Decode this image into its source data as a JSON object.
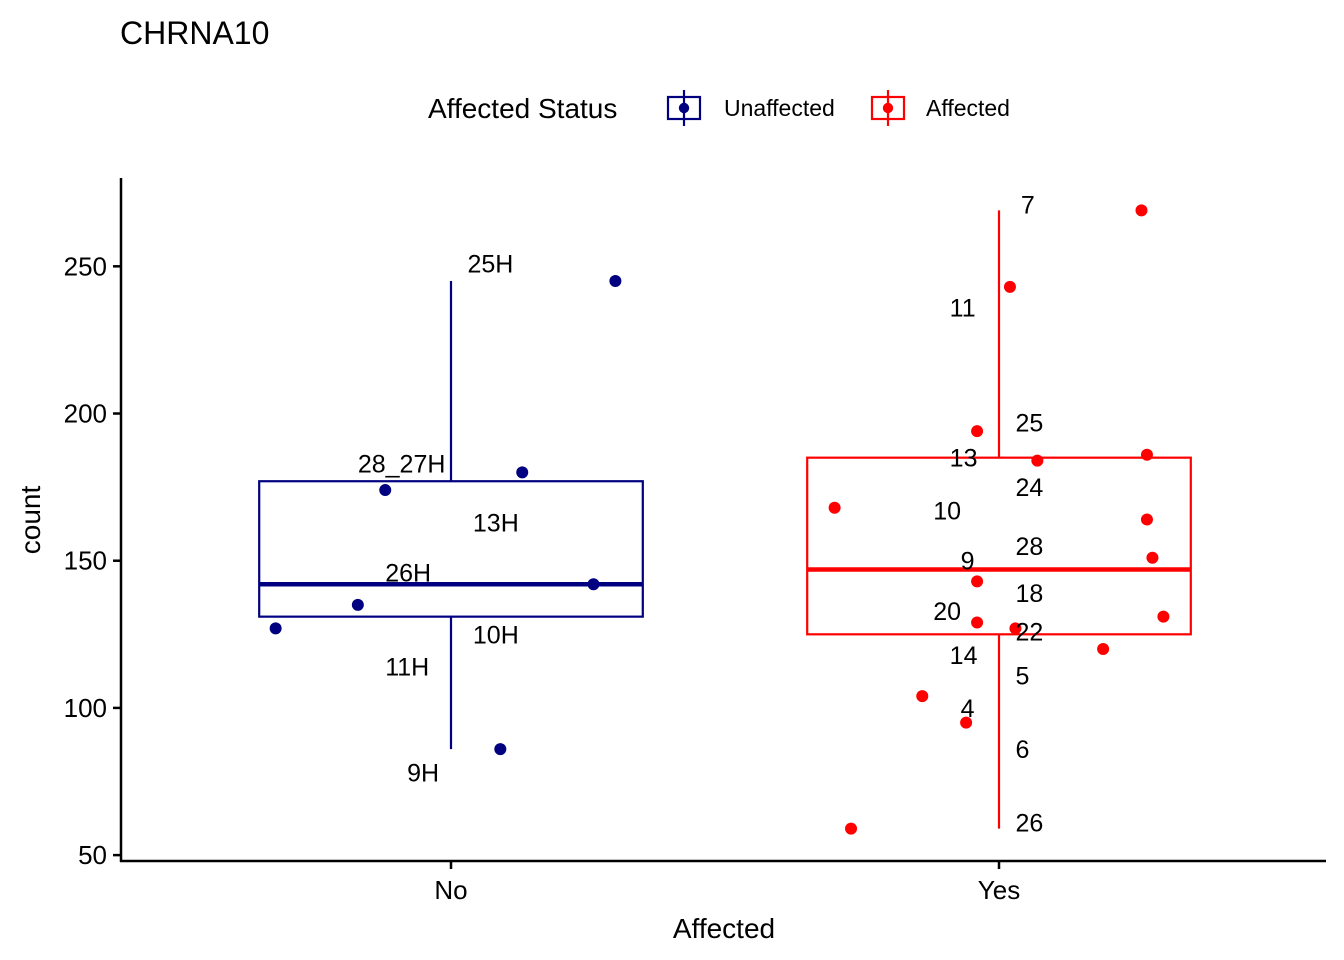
{
  "chart_data": {
    "type": "boxplot",
    "title": "CHRNA10",
    "xlabel": "Affected",
    "ylabel": "count",
    "ylim": [
      48,
      280
    ],
    "yticks": [
      50,
      100,
      150,
      200,
      250
    ],
    "categories": [
      "No",
      "Yes"
    ],
    "legend": {
      "title": "Affected Status",
      "position": "top",
      "entries": [
        {
          "label": "Unaffected",
          "color": "#000080"
        },
        {
          "label": "Affected",
          "color": "#FF0000"
        }
      ]
    },
    "boxes": [
      {
        "category": "No",
        "group": "Unaffected",
        "color": "#000080",
        "whisker_low": 86,
        "q1": 131,
        "median": 142,
        "q3": 177,
        "whisker_high": 245
      },
      {
        "category": "Yes",
        "group": "Affected",
        "color": "#FF0000",
        "whisker_low": 59,
        "q1": 125,
        "median": 147,
        "q3": 185,
        "whisker_high": 269
      }
    ],
    "points": [
      {
        "category": "No",
        "label": "25H",
        "value": 245,
        "jitter": 0.3,
        "lx": 0.03,
        "ly": 251
      },
      {
        "category": "No",
        "label": "28_27H",
        "value": 180,
        "jitter": 0.13,
        "lx": -0.17,
        "ly": 183
      },
      {
        "category": "No",
        "label": "13H",
        "value": 174,
        "jitter": -0.12,
        "lx": 0.04,
        "ly": 163
      },
      {
        "category": "No",
        "label": "26H",
        "value": 142,
        "jitter": 0.26,
        "lx": -0.12,
        "ly": 146
      },
      {
        "category": "No",
        "label": "10H",
        "value": 135,
        "jitter": -0.17,
        "lx": 0.04,
        "ly": 125
      },
      {
        "category": "No",
        "label": "11H",
        "value": 127,
        "jitter": -0.32,
        "lx": -0.12,
        "ly": 114
      },
      {
        "category": "No",
        "label": "9H",
        "value": 86,
        "jitter": 0.09,
        "lx": -0.08,
        "ly": 78
      },
      {
        "category": "Yes",
        "label": "7",
        "value": 269,
        "jitter": 0.26,
        "lx": 0.04,
        "ly": 271
      },
      {
        "category": "Yes",
        "label": "11",
        "value": 243,
        "jitter": 0.02,
        "lx": -0.09,
        "ly": 236
      },
      {
        "category": "Yes",
        "label": "25",
        "value": 194,
        "jitter": -0.04,
        "lx": 0.03,
        "ly": 197
      },
      {
        "category": "Yes",
        "label": "13",
        "value": 186,
        "jitter": 0.27,
        "lx": -0.09,
        "ly": 185
      },
      {
        "category": "Yes",
        "label": "24",
        "value": 184,
        "jitter": 0.07,
        "lx": 0.03,
        "ly": 175
      },
      {
        "category": "Yes",
        "label": "10",
        "value": 168,
        "jitter": -0.3,
        "lx": -0.12,
        "ly": 167
      },
      {
        "category": "Yes",
        "label": "28",
        "value": 164,
        "jitter": 0.27,
        "lx": 0.03,
        "ly": 155
      },
      {
        "category": "Yes",
        "label": "9",
        "value": 151,
        "jitter": 0.28,
        "lx": -0.07,
        "ly": 150
      },
      {
        "category": "Yes",
        "label": "18",
        "value": 143,
        "jitter": -0.04,
        "lx": 0.03,
        "ly": 139
      },
      {
        "category": "Yes",
        "label": "20",
        "value": 131,
        "jitter": 0.3,
        "lx": -0.12,
        "ly": 133
      },
      {
        "category": "Yes",
        "label": "22",
        "value": 129,
        "jitter": -0.04,
        "lx": 0.03,
        "ly": 126
      },
      {
        "category": "Yes",
        "label": "14",
        "value": 127,
        "jitter": 0.03,
        "lx": -0.09,
        "ly": 118
      },
      {
        "category": "Yes",
        "label": "5",
        "value": 120,
        "jitter": 0.19,
        "lx": 0.03,
        "ly": 111
      },
      {
        "category": "Yes",
        "label": "4",
        "value": 104,
        "jitter": -0.14,
        "lx": -0.07,
        "ly": 100
      },
      {
        "category": "Yes",
        "label": "6",
        "value": 95,
        "jitter": -0.06,
        "lx": 0.03,
        "ly": 86
      },
      {
        "category": "Yes",
        "label": "26",
        "value": 59,
        "jitter": -0.27,
        "lx": 0.03,
        "ly": 61
      }
    ]
  }
}
